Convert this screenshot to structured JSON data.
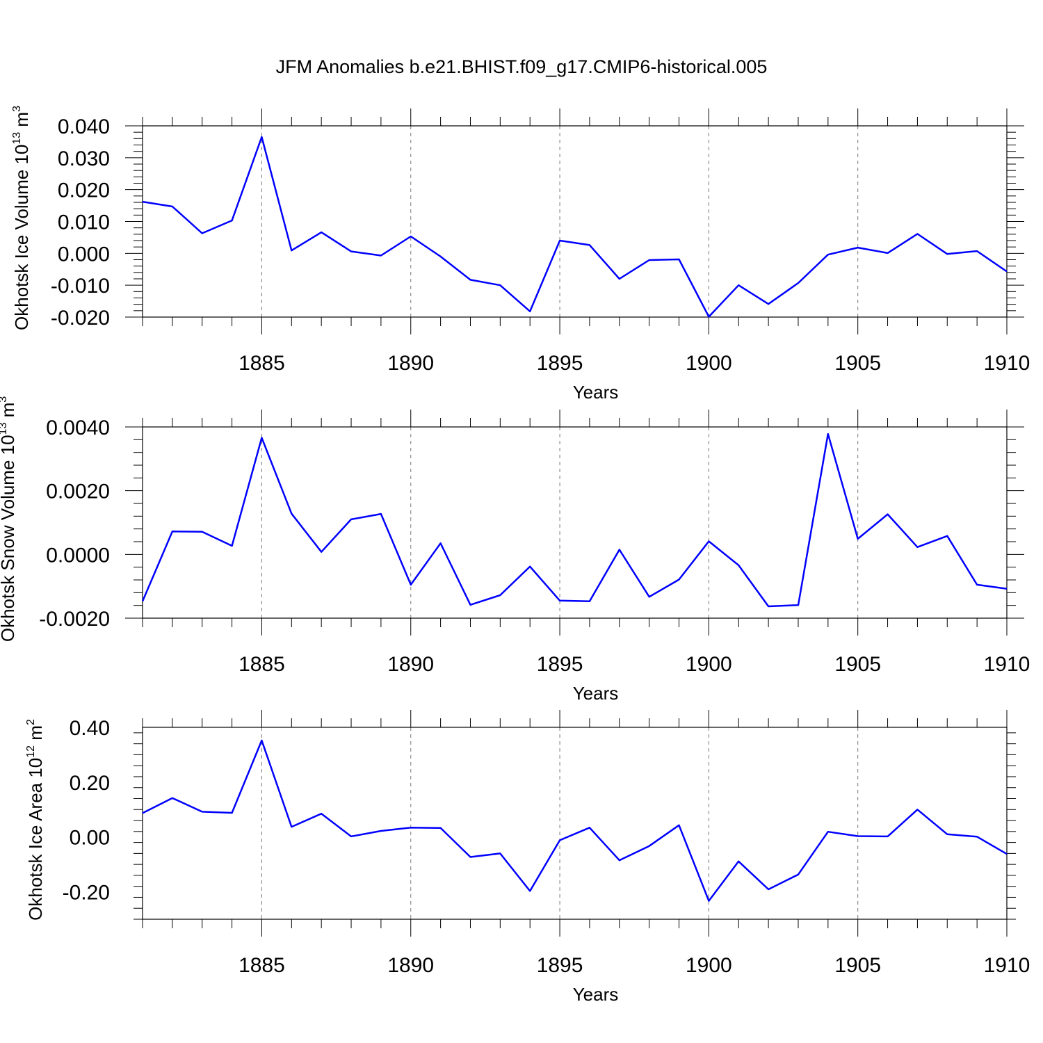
{
  "title": "JFM Anomalies b.e21.BHIST.f09_g17.CMIP6-historical.005",
  "colors": {
    "line": "#0000ff",
    "axes": "#000000",
    "grid": "#777777"
  },
  "chart_data": [
    {
      "type": "line",
      "ylabel": "Okhotsk Ice Volume 10",
      "ylabel_exp": "13",
      "ylabel_unit": " m",
      "ylabel_unit_exp": "3",
      "xlabel": "Years",
      "xlim": [
        1881,
        1910
      ],
      "ylim": [
        -0.02,
        0.04
      ],
      "yticks": [
        -0.02,
        -0.01,
        0.0,
        0.01,
        0.02,
        0.03,
        0.04
      ],
      "ytick_labels": [
        "-0.020",
        "-0.010",
        "0.000",
        "0.010",
        "0.020",
        "0.030",
        "0.040"
      ],
      "xticks": [
        1885,
        1890,
        1895,
        1900,
        1905,
        1910
      ],
      "xtick_labels": [
        "1885",
        "1890",
        "1895",
        "1900",
        "1905",
        "1910"
      ],
      "grid": "vertical dashed at major x ticks",
      "x": [
        1881,
        1882,
        1883,
        1884,
        1885,
        1886,
        1887,
        1888,
        1889,
        1890,
        1891,
        1892,
        1893,
        1894,
        1895,
        1896,
        1897,
        1898,
        1899,
        1900,
        1901,
        1902,
        1903,
        1904,
        1905,
        1906,
        1907,
        1908,
        1909,
        1910
      ],
      "series": [
        {
          "values": [
            0.0162,
            0.0147,
            0.0063,
            0.0103,
            0.0365,
            0.0009,
            0.0066,
            0.0006,
            -0.0007,
            0.0053,
            -0.001,
            -0.0083,
            -0.01,
            -0.0182,
            0.004,
            0.0026,
            -0.008,
            -0.0021,
            -0.0019,
            -0.0199,
            -0.01,
            -0.0159,
            -0.0093,
            -0.0004,
            0.0018,
            0.0001,
            0.0061,
            -0.0002,
            0.0007,
            -0.0057
          ]
        }
      ]
    },
    {
      "type": "line",
      "ylabel": "Okhotsk Snow Volume 10",
      "ylabel_exp": "13",
      "ylabel_unit": " m",
      "ylabel_unit_exp": "3",
      "xlabel": "Years",
      "xlim": [
        1881,
        1910
      ],
      "ylim": [
        -0.002,
        0.004
      ],
      "yticks": [
        -0.002,
        0.0,
        0.002,
        0.004
      ],
      "ytick_labels": [
        "-0.0020",
        "0.0000",
        "0.0020",
        "0.0040"
      ],
      "xticks": [
        1885,
        1890,
        1895,
        1900,
        1905,
        1910
      ],
      "xtick_labels": [
        "1885",
        "1890",
        "1895",
        "1900",
        "1905",
        "1910"
      ],
      "grid": "vertical dashed at major x ticks",
      "x": [
        1881,
        1882,
        1883,
        1884,
        1885,
        1886,
        1887,
        1888,
        1889,
        1890,
        1891,
        1892,
        1893,
        1894,
        1895,
        1896,
        1897,
        1898,
        1899,
        1900,
        1901,
        1902,
        1903,
        1904,
        1905,
        1906,
        1907,
        1908,
        1909,
        1910
      ],
      "series": [
        {
          "values": [
            -0.00147,
            0.00072,
            0.00071,
            0.00027,
            0.00366,
            0.00128,
            8e-05,
            0.0011,
            0.00127,
            -0.00095,
            0.00035,
            -0.00158,
            -0.00128,
            -0.00038,
            -0.00145,
            -0.00147,
            0.00015,
            -0.00133,
            -0.00079,
            0.00041,
            -0.00034,
            -0.00163,
            -0.00159,
            0.00378,
            0.00049,
            0.00126,
            0.00023,
            0.00058,
            -0.00095,
            -0.00108
          ]
        }
      ]
    },
    {
      "type": "line",
      "ylabel": "Okhotsk Ice Area 10",
      "ylabel_exp": "12",
      "ylabel_unit": " m",
      "ylabel_unit_exp": "2",
      "xlabel": "Years",
      "xlim": [
        1881,
        1910
      ],
      "ylim": [
        -0.3,
        0.4
      ],
      "yticks": [
        -0.2,
        0.0,
        0.2,
        0.4
      ],
      "ytick_labels": [
        "-0.20",
        "0.00",
        "0.20",
        "0.40"
      ],
      "xticks": [
        1885,
        1890,
        1895,
        1900,
        1905,
        1910
      ],
      "xtick_labels": [
        "1885",
        "1890",
        "1895",
        "1900",
        "1905",
        "1910"
      ],
      "grid": "vertical dashed at major x ticks",
      "x": [
        1881,
        1882,
        1883,
        1884,
        1885,
        1886,
        1887,
        1888,
        1889,
        1890,
        1891,
        1892,
        1893,
        1894,
        1895,
        1896,
        1897,
        1898,
        1899,
        1900,
        1901,
        1902,
        1903,
        1904,
        1905,
        1906,
        1907,
        1908,
        1909,
        1910
      ],
      "series": [
        {
          "values": [
            0.087,
            0.142,
            0.092,
            0.088,
            0.352,
            0.037,
            0.085,
            0.002,
            0.022,
            0.034,
            0.033,
            -0.073,
            -0.06,
            -0.197,
            -0.012,
            0.034,
            -0.085,
            -0.033,
            0.043,
            -0.233,
            -0.089,
            -0.191,
            -0.137,
            0.019,
            0.003,
            0.002,
            0.1,
            0.01,
            0.001,
            -0.062
          ]
        }
      ]
    }
  ]
}
